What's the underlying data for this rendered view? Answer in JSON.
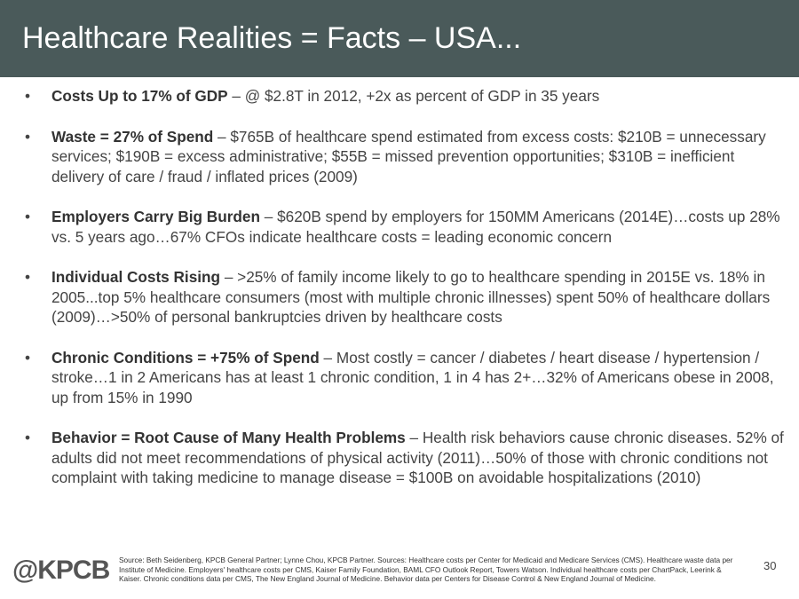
{
  "title": "Healthcare Realities = Facts – USA...",
  "bullets": [
    {
      "bold": "Costs Up to 17% of GDP",
      "text": " – @ $2.8T in 2012, +2x as percent of GDP in 35 years"
    },
    {
      "bold": "Waste = 27% of Spend",
      "text": " – $765B of healthcare spend estimated from excess costs: $210B = unnecessary services; $190B = excess administrative; $55B = missed prevention opportunities; $310B = inefficient delivery of care / fraud / inflated prices (2009)"
    },
    {
      "bold": "Employers Carry Big Burden",
      "text": " – $620B spend by employers for 150MM Americans (2014E)…costs up 28% vs. 5 years ago…67% CFOs indicate healthcare costs = leading economic concern"
    },
    {
      "bold": "Individual Costs Rising",
      "text": " – >25% of family income likely to go to healthcare spending in 2015E vs. 18% in 2005...top 5% healthcare consumers (most with multiple chronic illnesses) spent 50% of healthcare dollars (2009)…>50% of personal bankruptcies driven by healthcare costs"
    },
    {
      "bold": "Chronic Conditions = +75% of Spend",
      "text": " – Most costly = cancer / diabetes / heart disease / hypertension / stroke…1 in 2 Americans has at least 1 chronic condition, 1 in 4 has 2+…32% of Americans obese in 2008, up from 15% in 1990"
    },
    {
      "bold": "Behavior = Root Cause of Many Health Problems",
      "text": " – Health risk behaviors cause chronic diseases. 52% of adults did not meet recommendations of physical activity (2011)…50% of those with chronic conditions not complaint with taking medicine to manage disease = $100B on avoidable hospitalizations (2010)"
    }
  ],
  "bullet_char": "•",
  "logo": "@KPCB",
  "source": "Source: Beth Seidenberg, KPCB General Partner; Lynne Chou, KPCB Partner. Sources: Healthcare costs per Center for Medicaid and Medicare Services (CMS). Healthcare waste data per Institute of Medicine. Employers' healthcare costs per CMS, Kaiser Family Foundation, BAML CFO Outlook Report, Towers Watson. Individual healthcare costs per ChartPack, Leerink & Kaiser. Chronic conditions data per CMS, The New England Journal of Medicine. Behavior data per Centers for Disease Control & New England Journal of Medicine.",
  "page_number": "30"
}
